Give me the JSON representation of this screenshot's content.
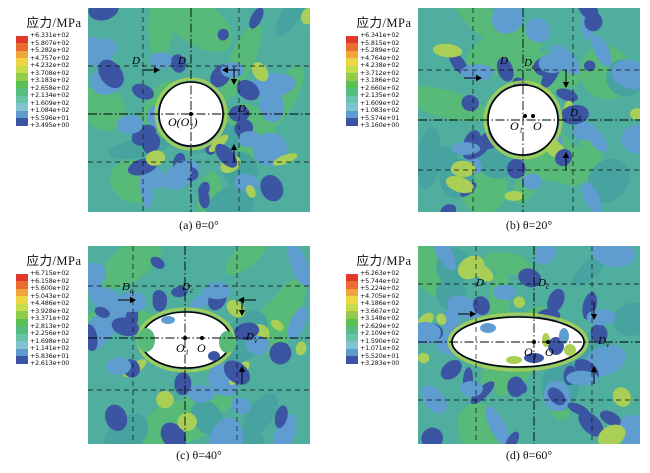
{
  "colors": {
    "colorbar": [
      "#e0392c",
      "#ea6c30",
      "#f0a43c",
      "#edd844",
      "#c5dc4b",
      "#92cc4d",
      "#5ac054",
      "#54bd7f",
      "#68c4a8",
      "#7ec3cf",
      "#5f9ccd",
      "#3a53a4"
    ],
    "field_background": "#4fae9d",
    "field_teal2": "#46a39f",
    "field_green": "#58ba78",
    "field_yellow_green": "#a9cf57",
    "field_light_blue": "#5f9dd1",
    "field_navy": "#3b55a3",
    "hole_fill": "#ffffff",
    "line_color": "#111111"
  },
  "panels": [
    {
      "id": "a",
      "caption": "(a) θ=0°",
      "legend_title": "应力/MPa",
      "legend_values": [
        "+6.331e+02",
        "+5.807e+02",
        "+5.282e+02",
        "+4.757e+02",
        "+4.232e+02",
        "+3.708e+02",
        "+3.183e+02",
        "+2.658e+02",
        "+2.134e+02",
        "+1.609e+02",
        "+1.084e+02",
        "+5.596e+01",
        "+3.495e+00"
      ],
      "labels": {
        "top_left": {
          "base": "D",
          "sub": ""
        },
        "top_right": {
          "base": "D",
          "sub": "c"
        },
        "right": {
          "base": "D",
          "sub": "v"
        },
        "centers": [
          "O(O₁)"
        ]
      }
    },
    {
      "id": "b",
      "caption": "(b) θ=20°",
      "legend_title": "应力/MPa",
      "legend_values": [
        "+6.341e+02",
        "+5.815e+02",
        "+5.289e+02",
        "+4.764e+02",
        "+4.238e+02",
        "+3.712e+02",
        "+3.186e+02",
        "+2.660e+02",
        "+2.135e+02",
        "+1.609e+02",
        "+1.083e+02",
        "+5.574e+01",
        "+3.160e+00"
      ],
      "labels": {
        "top_left": {
          "base": "D",
          "sub": ""
        },
        "top_right": {
          "base": "D",
          "sub": "c"
        },
        "right": {
          "base": "D",
          "sub": "v"
        },
        "centers": [
          "O₁",
          "O"
        ]
      }
    },
    {
      "id": "c",
      "caption": "(c) θ=40°",
      "legend_title": "应力/MPa",
      "legend_values": [
        "+6.715e+02",
        "+6.158e+02",
        "+5.600e+02",
        "+5.043e+02",
        "+4.486e+02",
        "+3.928e+02",
        "+3.371e+02",
        "+2.813e+02",
        "+2.256e+02",
        "+1.698e+02",
        "+1.141e+02",
        "+5.836e+01",
        "+2.613e+00"
      ],
      "labels": {
        "top_left": {
          "base": "D",
          "sub": "a"
        },
        "top_right": {
          "base": "D",
          "sub": "c"
        },
        "right": {
          "base": "D",
          "sub": "v"
        },
        "centers": [
          "O₁",
          "O"
        ]
      }
    },
    {
      "id": "d",
      "caption": "(d) θ=60°",
      "legend_title": "应力/MPa",
      "legend_values": [
        "+6.263e+02",
        "+5.744e+02",
        "+5.224e+02",
        "+4.705e+02",
        "+4.186e+02",
        "+3.667e+02",
        "+3.148e+02",
        "+2.629e+02",
        "+2.109e+02",
        "+1.590e+02",
        "+1.071e+02",
        "+5.520e+01",
        "+3.283e+00"
      ],
      "labels": {
        "top_left": {
          "base": "D",
          "sub": ""
        },
        "top_right": {
          "base": "D",
          "sub": "c"
        },
        "right": {
          "base": "D",
          "sub": "v"
        },
        "centers": [
          "O₁",
          "O"
        ]
      }
    }
  ],
  "chart_data": [
    {
      "type": "heatmap",
      "title": "应力/MPa",
      "caption": "(a) θ=0°",
      "units": "MPa",
      "colorbar_ticks_mpa": [
        633.1,
        580.7,
        528.2,
        475.7,
        423.2,
        370.8,
        318.3,
        265.8,
        213.4,
        160.9,
        108.4,
        55.96,
        3.495
      ],
      "legend_position": "top-left",
      "annotations": [
        "D",
        "Dc",
        "Dv",
        "O(O₁)"
      ],
      "hole_shape": "circle"
    },
    {
      "type": "heatmap",
      "title": "应力/MPa",
      "caption": "(b) θ=20°",
      "units": "MPa",
      "colorbar_ticks_mpa": [
        634.1,
        581.5,
        528.9,
        476.4,
        423.8,
        371.2,
        318.6,
        266.0,
        213.5,
        160.9,
        108.3,
        55.74,
        3.16
      ],
      "legend_position": "top-left",
      "annotations": [
        "D",
        "Dc",
        "Dv",
        "O₁",
        "O"
      ],
      "hole_shape": "circle"
    },
    {
      "type": "heatmap",
      "title": "应力/MPa",
      "caption": "(c) θ=40°",
      "units": "MPa",
      "colorbar_ticks_mpa": [
        671.5,
        615.8,
        560.0,
        504.3,
        448.6,
        392.8,
        337.1,
        281.3,
        225.6,
        169.8,
        114.1,
        58.36,
        2.613
      ],
      "legend_position": "top-left",
      "annotations": [
        "Da",
        "Dc",
        "Dv",
        "O₁",
        "O"
      ],
      "hole_shape": "ellipse"
    },
    {
      "type": "heatmap",
      "title": "应力/MPa",
      "caption": "(d) θ=60°",
      "units": "MPa",
      "colorbar_ticks_mpa": [
        626.3,
        574.4,
        522.4,
        470.5,
        418.6,
        366.7,
        314.8,
        262.9,
        210.9,
        159.0,
        107.1,
        55.2,
        3.283
      ],
      "legend_position": "top-left",
      "annotations": [
        "D",
        "Dc",
        "Dv",
        "O₁",
        "O"
      ],
      "hole_shape": "ellipse"
    }
  ]
}
